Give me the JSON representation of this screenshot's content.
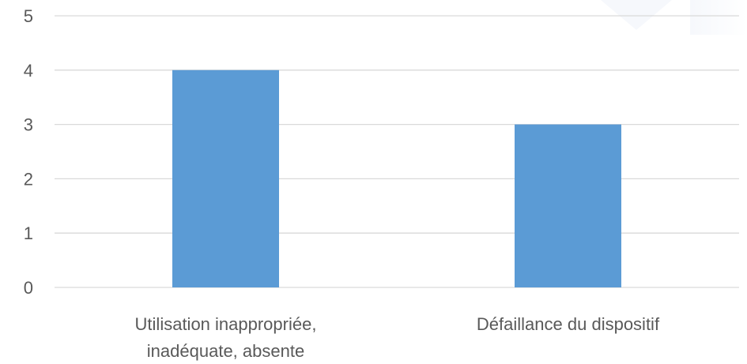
{
  "chart_data": {
    "type": "bar",
    "title": "",
    "xlabel": "",
    "ylabel": "",
    "categories": [
      [
        "Utilisation inappropriée,",
        "inadéquate, absente"
      ],
      [
        "Défaillance du dispositif"
      ]
    ],
    "values": [
      4,
      3
    ],
    "ylim": [
      0,
      5
    ],
    "yticks": [
      0,
      1,
      2,
      3,
      4,
      5
    ],
    "grid": true,
    "legend": "none",
    "bar_color": "#5B9BD5",
    "grid_color": "#D9D9D9",
    "text_color": "#595959"
  }
}
